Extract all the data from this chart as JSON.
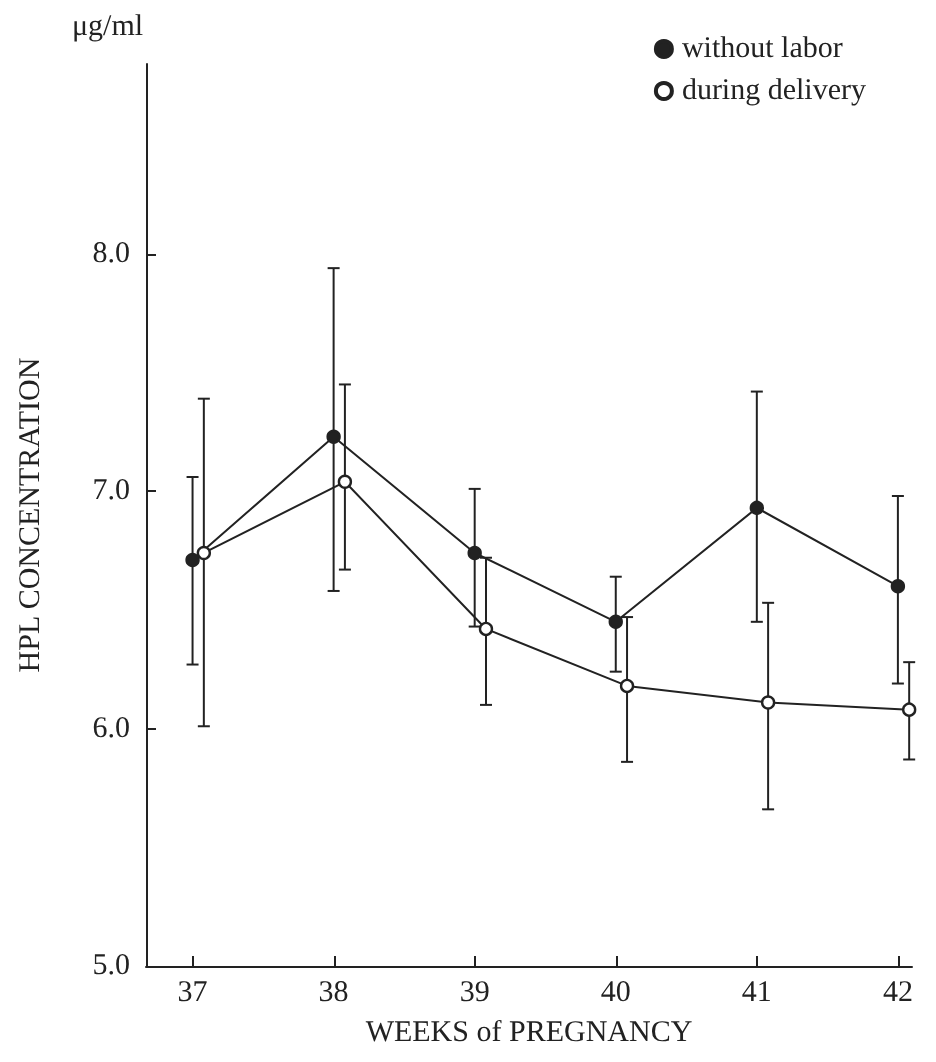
{
  "chart_data": {
    "type": "line",
    "xlabel": "WEEKS of PREGNANCY",
    "ylabel": "HPL CONCENTRATION",
    "annotations": [
      "μg/ml"
    ],
    "xlim": [
      36.67,
      42.1
    ],
    "xticks": [
      37,
      38,
      39,
      40,
      41,
      42
    ],
    "ylim": [
      5,
      8.8
    ],
    "yticks": [
      {
        "value": 5,
        "label": "5.0"
      },
      {
        "value": 6,
        "label": "6.0"
      },
      {
        "value": 7,
        "label": "7.0"
      },
      {
        "value": 8,
        "label": "8.0"
      }
    ],
    "grid": false,
    "legend": "top right",
    "marker": "circle",
    "line_style": "solid",
    "series": [
      {
        "name": "without labor",
        "color": "#222222",
        "x": [
          37,
          38,
          39,
          40,
          41,
          42
        ],
        "values": [
          6.71,
          7.23,
          6.74,
          6.45,
          6.93,
          6.6
        ],
        "errors": [
          [
            6.27,
            7.06
          ],
          [
            6.58,
            7.94
          ],
          [
            6.43,
            7.01
          ],
          [
            6.24,
            6.64
          ],
          [
            6.45,
            7.42
          ],
          [
            6.19,
            6.98
          ]
        ]
      },
      {
        "name": "during delivery",
        "color": "#222222",
        "x": [
          37.08,
          38.08,
          39.08,
          40.08,
          41.08,
          42.08
        ],
        "values": [
          6.74,
          7.04,
          6.42,
          6.18,
          6.11,
          6.08
        ],
        "errors": [
          [
            6.01,
            7.39
          ],
          [
            6.67,
            7.45
          ],
          [
            6.1,
            6.72
          ],
          [
            5.86,
            6.47
          ],
          [
            5.66,
            6.53
          ],
          [
            5.87,
            6.28
          ]
        ]
      }
    ]
  }
}
